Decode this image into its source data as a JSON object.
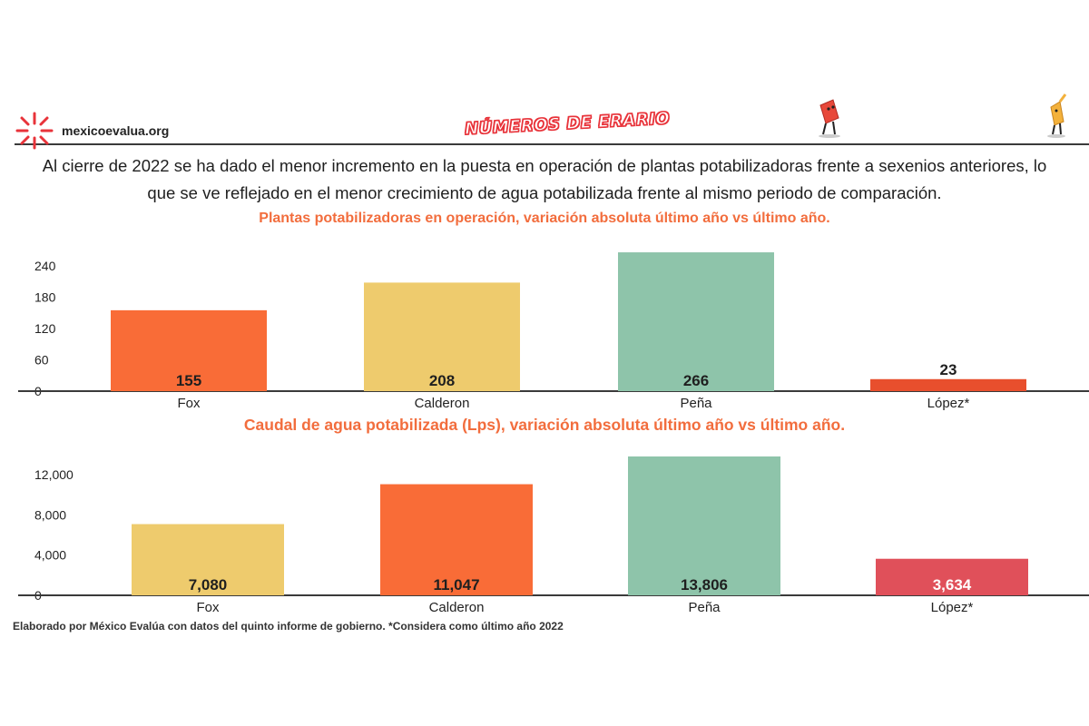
{
  "header": {
    "site": "mexicoevalua.org",
    "brand": "NÚMEROS DE ERARIO",
    "logo_icon": "asterisk-burst-icon",
    "mascot_icons": [
      "red-mascot-icon",
      "orange-mascot-icon"
    ]
  },
  "headline": "Al cierre de 2022 se ha dado el menor incremento en la puesta en operación de plantas potabilizadoras frente a sexenios anteriores, lo que se ve reflejado en el menor crecimiento de agua potabilizada frente al mismo periodo de comparación.",
  "colors": {
    "orange": "#f96c37",
    "yellow": "#eecb6d",
    "green": "#8ec4aa",
    "red_orange": "#e84f2d",
    "red": "#e0505a",
    "title": "#f26d3d"
  },
  "chart_data": [
    {
      "type": "bar",
      "title": "Plantas potabilizadoras en operación, variación absoluta último año vs último año.",
      "categories": [
        "Fox",
        "Calderon",
        "Peña",
        "López*"
      ],
      "values": [
        155,
        208,
        266,
        23
      ],
      "value_labels": [
        "155",
        "208",
        "266",
        "23"
      ],
      "bar_colors": [
        "#f96c37",
        "#eecb6d",
        "#8ec4aa",
        "#e84f2d"
      ],
      "yticks": [
        "0",
        "60",
        "120",
        "180",
        "240"
      ],
      "ylim": [
        0,
        240
      ],
      "grid": false
    },
    {
      "type": "bar",
      "title": "Caudal de agua potabilizada (Lps), variación absoluta último año vs último año.",
      "categories": [
        "Fox",
        "Calderon",
        "Peña",
        "López*"
      ],
      "values": [
        7080,
        11047,
        13806,
        3634
      ],
      "value_labels": [
        "7,080",
        "11,047",
        "13,806",
        "3,634"
      ],
      "bar_colors": [
        "#eecb6d",
        "#f96c37",
        "#8ec4aa",
        "#e0505a"
      ],
      "yticks": [
        "0",
        "4,000",
        "8,000",
        "12,000"
      ],
      "ylim": [
        0,
        12000
      ],
      "grid": false
    }
  ],
  "footer": "Elaborado por México Evalúa con datos del quinto informe de gobierno. *Considera como último año 2022"
}
